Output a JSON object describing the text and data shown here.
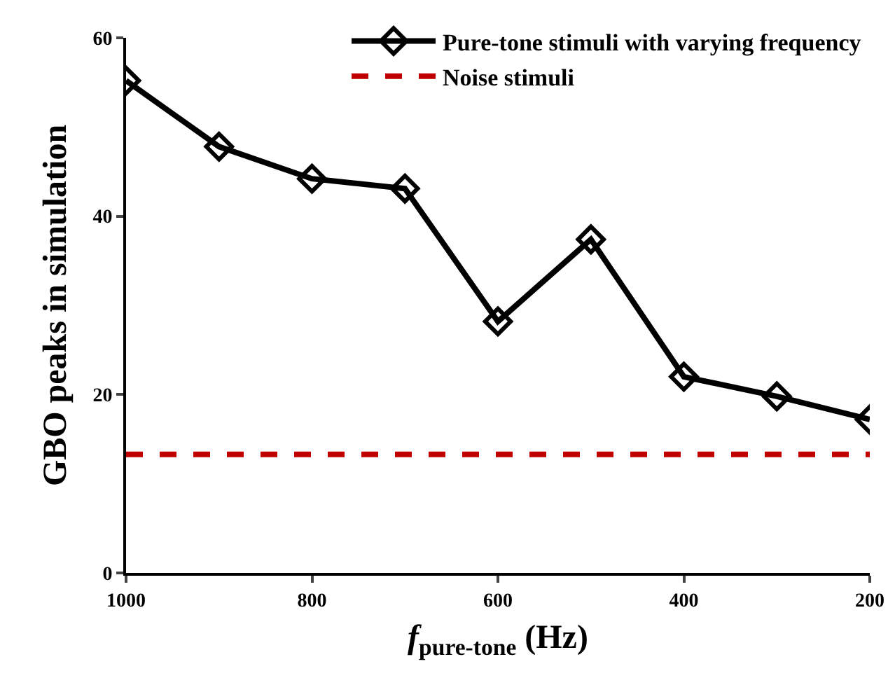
{
  "chart_data": {
    "type": "line",
    "xlabel": "f$_{pure-tone}$ (Hz)",
    "ylabel": "GBO peaks in simulation",
    "x": [
      1000,
      900,
      800,
      700,
      600,
      500,
      400,
      300,
      200
    ],
    "series": [
      {
        "name": "Pure-tone stimuli with varying frequency",
        "color": "#000000",
        "values": [
          55.2,
          47.8,
          44.2,
          43.1,
          28.2,
          37.4,
          22.0,
          19.8,
          17.2
        ]
      }
    ],
    "ref_lines": [
      {
        "axis": "y",
        "value": 13.3,
        "label": "Noise stimuli",
        "color": "#c00000",
        "line_style": "dashed"
      }
    ],
    "xlim": [
      1000,
      200
    ],
    "xticks": [
      1000,
      800,
      600,
      400,
      200
    ],
    "ylim": [
      0,
      60
    ],
    "yticks": [
      0,
      20,
      40,
      60
    ],
    "grid": false,
    "legend": "top right",
    "marker": "diamond",
    "line_style": "solid"
  }
}
